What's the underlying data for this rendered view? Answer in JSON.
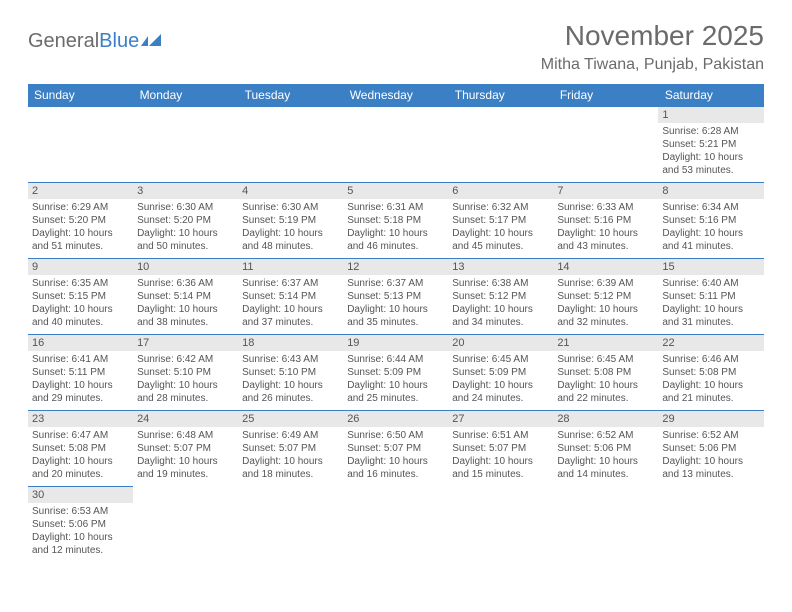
{
  "brand": {
    "part1": "General",
    "part2": "Blue"
  },
  "title": "November 2025",
  "location": "Mitha Tiwana, Punjab, Pakistan",
  "colors": {
    "header_bg": "#3b7fc4",
    "header_text": "#ffffff",
    "text": "#555555",
    "grey_bg": "#e8e8e8",
    "page_bg": "#ffffff"
  },
  "weekdays": [
    "Sunday",
    "Monday",
    "Tuesday",
    "Wednesday",
    "Thursday",
    "Friday",
    "Saturday"
  ],
  "first_weekday_index": 6,
  "days": [
    {
      "n": 1,
      "sunrise": "6:28 AM",
      "sunset": "5:21 PM",
      "daylight": "10 hours and 53 minutes."
    },
    {
      "n": 2,
      "sunrise": "6:29 AM",
      "sunset": "5:20 PM",
      "daylight": "10 hours and 51 minutes."
    },
    {
      "n": 3,
      "sunrise": "6:30 AM",
      "sunset": "5:20 PM",
      "daylight": "10 hours and 50 minutes."
    },
    {
      "n": 4,
      "sunrise": "6:30 AM",
      "sunset": "5:19 PM",
      "daylight": "10 hours and 48 minutes."
    },
    {
      "n": 5,
      "sunrise": "6:31 AM",
      "sunset": "5:18 PM",
      "daylight": "10 hours and 46 minutes."
    },
    {
      "n": 6,
      "sunrise": "6:32 AM",
      "sunset": "5:17 PM",
      "daylight": "10 hours and 45 minutes."
    },
    {
      "n": 7,
      "sunrise": "6:33 AM",
      "sunset": "5:16 PM",
      "daylight": "10 hours and 43 minutes."
    },
    {
      "n": 8,
      "sunrise": "6:34 AM",
      "sunset": "5:16 PM",
      "daylight": "10 hours and 41 minutes."
    },
    {
      "n": 9,
      "sunrise": "6:35 AM",
      "sunset": "5:15 PM",
      "daylight": "10 hours and 40 minutes."
    },
    {
      "n": 10,
      "sunrise": "6:36 AM",
      "sunset": "5:14 PM",
      "daylight": "10 hours and 38 minutes."
    },
    {
      "n": 11,
      "sunrise": "6:37 AM",
      "sunset": "5:14 PM",
      "daylight": "10 hours and 37 minutes."
    },
    {
      "n": 12,
      "sunrise": "6:37 AM",
      "sunset": "5:13 PM",
      "daylight": "10 hours and 35 minutes."
    },
    {
      "n": 13,
      "sunrise": "6:38 AM",
      "sunset": "5:12 PM",
      "daylight": "10 hours and 34 minutes."
    },
    {
      "n": 14,
      "sunrise": "6:39 AM",
      "sunset": "5:12 PM",
      "daylight": "10 hours and 32 minutes."
    },
    {
      "n": 15,
      "sunrise": "6:40 AM",
      "sunset": "5:11 PM",
      "daylight": "10 hours and 31 minutes."
    },
    {
      "n": 16,
      "sunrise": "6:41 AM",
      "sunset": "5:11 PM",
      "daylight": "10 hours and 29 minutes."
    },
    {
      "n": 17,
      "sunrise": "6:42 AM",
      "sunset": "5:10 PM",
      "daylight": "10 hours and 28 minutes."
    },
    {
      "n": 18,
      "sunrise": "6:43 AM",
      "sunset": "5:10 PM",
      "daylight": "10 hours and 26 minutes."
    },
    {
      "n": 19,
      "sunrise": "6:44 AM",
      "sunset": "5:09 PM",
      "daylight": "10 hours and 25 minutes."
    },
    {
      "n": 20,
      "sunrise": "6:45 AM",
      "sunset": "5:09 PM",
      "daylight": "10 hours and 24 minutes."
    },
    {
      "n": 21,
      "sunrise": "6:45 AM",
      "sunset": "5:08 PM",
      "daylight": "10 hours and 22 minutes."
    },
    {
      "n": 22,
      "sunrise": "6:46 AM",
      "sunset": "5:08 PM",
      "daylight": "10 hours and 21 minutes."
    },
    {
      "n": 23,
      "sunrise": "6:47 AM",
      "sunset": "5:08 PM",
      "daylight": "10 hours and 20 minutes."
    },
    {
      "n": 24,
      "sunrise": "6:48 AM",
      "sunset": "5:07 PM",
      "daylight": "10 hours and 19 minutes."
    },
    {
      "n": 25,
      "sunrise": "6:49 AM",
      "sunset": "5:07 PM",
      "daylight": "10 hours and 18 minutes."
    },
    {
      "n": 26,
      "sunrise": "6:50 AM",
      "sunset": "5:07 PM",
      "daylight": "10 hours and 16 minutes."
    },
    {
      "n": 27,
      "sunrise": "6:51 AM",
      "sunset": "5:07 PM",
      "daylight": "10 hours and 15 minutes."
    },
    {
      "n": 28,
      "sunrise": "6:52 AM",
      "sunset": "5:06 PM",
      "daylight": "10 hours and 14 minutes."
    },
    {
      "n": 29,
      "sunrise": "6:52 AM",
      "sunset": "5:06 PM",
      "daylight": "10 hours and 13 minutes."
    },
    {
      "n": 30,
      "sunrise": "6:53 AM",
      "sunset": "5:06 PM",
      "daylight": "10 hours and 12 minutes."
    }
  ],
  "labels": {
    "sunrise": "Sunrise:",
    "sunset": "Sunset:",
    "daylight": "Daylight:"
  }
}
